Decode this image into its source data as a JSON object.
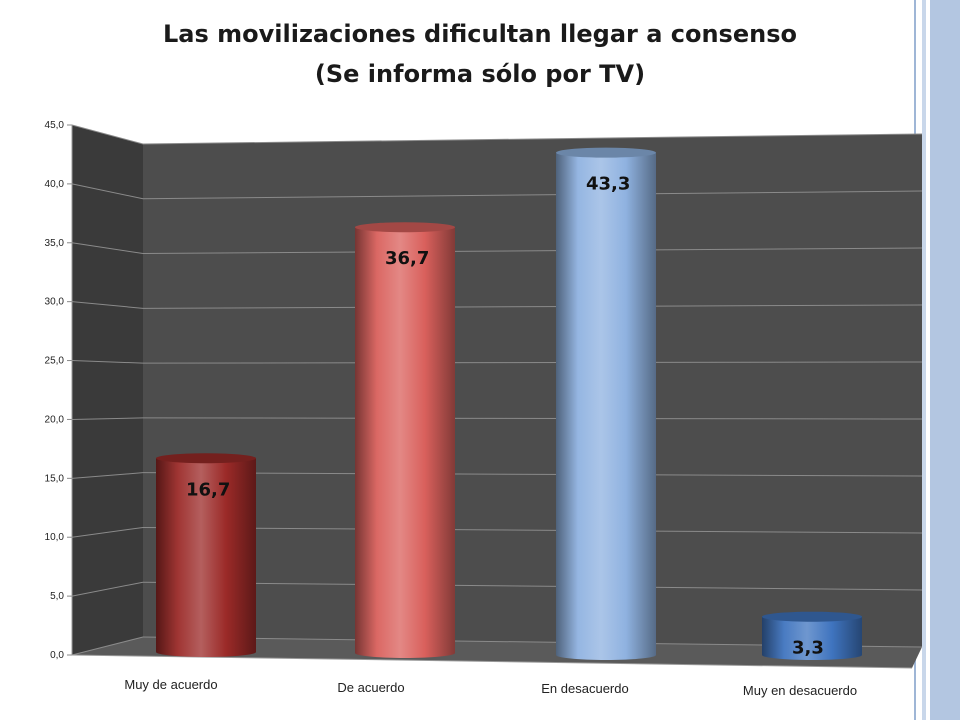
{
  "slide": {
    "title_line1": "Las movilizaciones dificultan llegar a consenso",
    "title_line2": "(Se informa sólo por TV)"
  },
  "colors": {
    "wall": "#4d4d4d",
    "side_wall": "#3a3a3a",
    "floor": "#5a5a5a",
    "red_series": "#c0504d",
    "blue_series": "#4f81bd"
  },
  "chart_data": {
    "type": "bar",
    "title": "Las movilizaciones dificultan llegar a consenso (Se informa sólo por TV)",
    "categories": [
      "Muy de acuerdo",
      "De acuerdo",
      "En desacuerdo",
      "Muy en desacuerdo"
    ],
    "values": [
      16.7,
      36.7,
      43.3,
      3.3
    ],
    "data_labels": [
      "16,7",
      "36,7",
      "43,3",
      "3,3"
    ],
    "bar_colors": [
      "#9b2a28",
      "#d9605c",
      "#8fb2e0",
      "#3f74bf"
    ],
    "ylim": [
      0,
      45
    ],
    "y_ticks": [
      "0,0",
      "5,0",
      "10,0",
      "15,0",
      "20,0",
      "25,0",
      "30,0",
      "35,0",
      "40,0",
      "45,0"
    ],
    "xlabel": "",
    "ylabel": "",
    "grid": true,
    "style": "3d-cylinder",
    "legend": "none"
  }
}
